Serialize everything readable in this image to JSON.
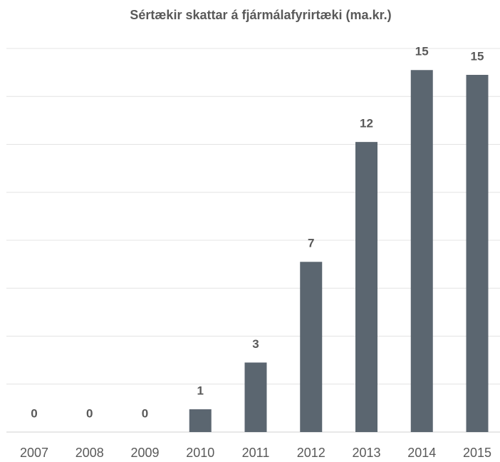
{
  "chart_data": {
    "type": "bar",
    "title": "Sértækir skattar á fjármálafyrirtæki (ma.kr.)",
    "categories": [
      "2007",
      "2008",
      "2009",
      "2010",
      "2011",
      "2012",
      "2013",
      "2014",
      "2015"
    ],
    "values": [
      0,
      0,
      0,
      0.95,
      2.9,
      7.1,
      12.1,
      15.1,
      14.9
    ],
    "value_labels": [
      "0",
      "0",
      "0",
      "1",
      "3",
      "7",
      "12",
      "15",
      "15"
    ],
    "color": "#5b6670",
    "ylim": [
      0,
      16
    ],
    "yticks": [
      0,
      2,
      4,
      6,
      8,
      10,
      12,
      14,
      16
    ],
    "grid": true
  }
}
